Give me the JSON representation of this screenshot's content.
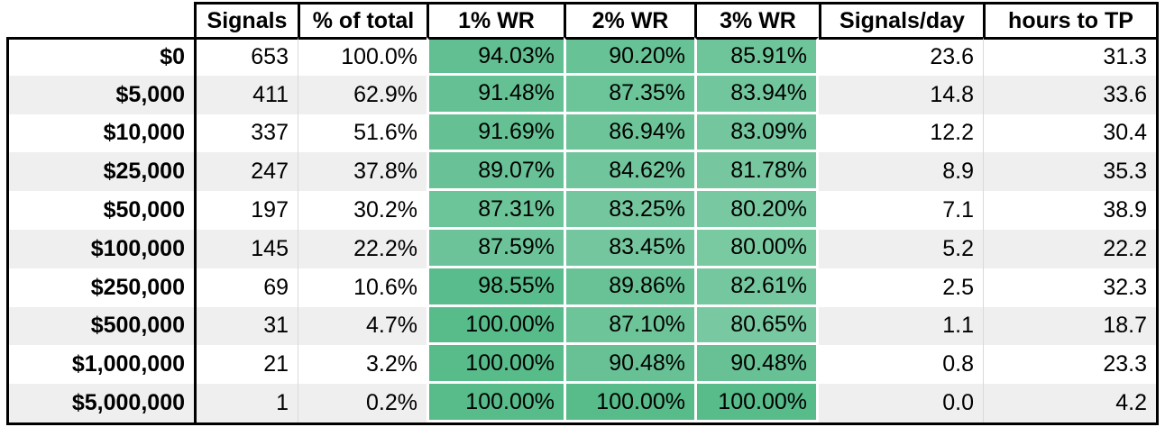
{
  "table": {
    "columns": [
      {
        "key": "label",
        "label": "",
        "wr": false
      },
      {
        "key": "signals",
        "label": "Signals",
        "wr": false
      },
      {
        "key": "pct_of_total",
        "label": "% of total",
        "wr": false
      },
      {
        "key": "wr1",
        "label": "1% WR",
        "wr": true
      },
      {
        "key": "wr2",
        "label": "2% WR",
        "wr": true
      },
      {
        "key": "wr3",
        "label": "3% WR",
        "wr": true
      },
      {
        "key": "signals_per_day",
        "label": "Signals/day",
        "wr": false
      },
      {
        "key": "hours_to_tp",
        "label": "hours to TP",
        "wr": false
      }
    ],
    "rows": [
      {
        "label": "$0",
        "signals": "653",
        "pct_of_total": "100.0%",
        "wr1": "94.03%",
        "wr2": "90.20%",
        "wr3": "85.91%",
        "signals_per_day": "23.6",
        "hours_to_tp": "31.3"
      },
      {
        "label": "$5,000",
        "signals": "411",
        "pct_of_total": "62.9%",
        "wr1": "91.48%",
        "wr2": "87.35%",
        "wr3": "83.94%",
        "signals_per_day": "14.8",
        "hours_to_tp": "33.6"
      },
      {
        "label": "$10,000",
        "signals": "337",
        "pct_of_total": "51.6%",
        "wr1": "91.69%",
        "wr2": "86.94%",
        "wr3": "83.09%",
        "signals_per_day": "12.2",
        "hours_to_tp": "30.4"
      },
      {
        "label": "$25,000",
        "signals": "247",
        "pct_of_total": "37.8%",
        "wr1": "89.07%",
        "wr2": "84.62%",
        "wr3": "81.78%",
        "signals_per_day": "8.9",
        "hours_to_tp": "35.3"
      },
      {
        "label": "$50,000",
        "signals": "197",
        "pct_of_total": "30.2%",
        "wr1": "87.31%",
        "wr2": "83.25%",
        "wr3": "80.20%",
        "signals_per_day": "7.1",
        "hours_to_tp": "38.9"
      },
      {
        "label": "$100,000",
        "signals": "145",
        "pct_of_total": "22.2%",
        "wr1": "87.59%",
        "wr2": "83.45%",
        "wr3": "80.00%",
        "signals_per_day": "5.2",
        "hours_to_tp": "22.2"
      },
      {
        "label": "$250,000",
        "signals": "69",
        "pct_of_total": "10.6%",
        "wr1": "98.55%",
        "wr2": "89.86%",
        "wr3": "82.61%",
        "signals_per_day": "2.5",
        "hours_to_tp": "32.3"
      },
      {
        "label": "$500,000",
        "signals": "31",
        "pct_of_total": "4.7%",
        "wr1": "100.00%",
        "wr2": "87.10%",
        "wr3": "80.65%",
        "signals_per_day": "1.1",
        "hours_to_tp": "18.7"
      },
      {
        "label": "$1,000,000",
        "signals": "21",
        "pct_of_total": "3.2%",
        "wr1": "100.00%",
        "wr2": "90.48%",
        "wr3": "90.48%",
        "signals_per_day": "0.8",
        "hours_to_tp": "23.3"
      },
      {
        "label": "$5,000,000",
        "signals": "1",
        "pct_of_total": "0.2%",
        "wr1": "100.00%",
        "wr2": "100.00%",
        "wr3": "100.00%",
        "signals_per_day": "0.0",
        "hours_to_tp": "4.2"
      }
    ],
    "colors": {
      "wr_fill_max": "#57bb8a",
      "wr_fill_min": "#ffffff",
      "stripe": "#efefef",
      "row_white": "#ffffff",
      "border": "#000000",
      "gridline": "#d9d9d9",
      "text": "#000000"
    }
  }
}
